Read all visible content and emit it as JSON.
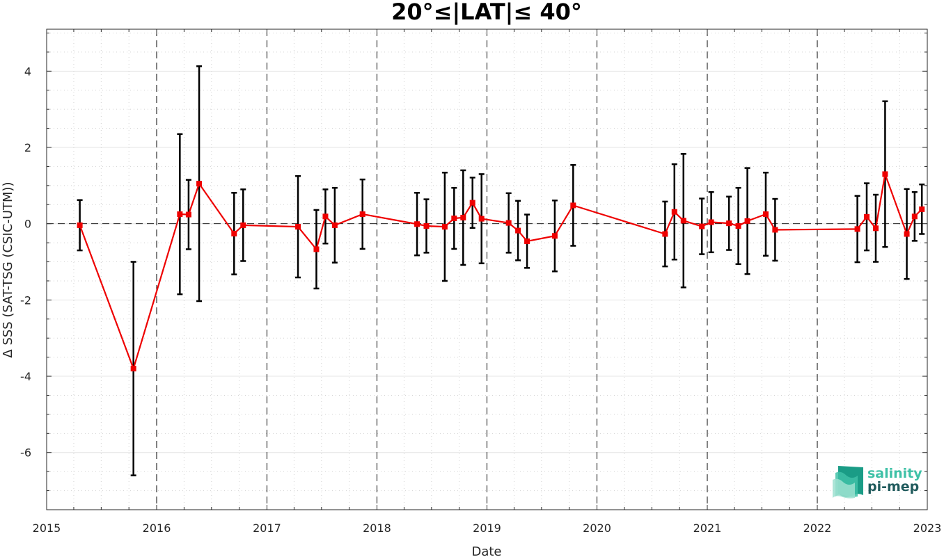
{
  "chart_data": {
    "type": "line",
    "title": "20°≤|LAT|≤ 40°",
    "xlabel": "Date",
    "ylabel": "Δ SSS (SAT-TSG (CSIC-UTM))",
    "xlim": [
      "2015-01-01",
      "2023-01-01"
    ],
    "ylim": [
      -7.5,
      5.1
    ],
    "x_tick_labels": [
      "2015",
      "2016",
      "2017",
      "2018",
      "2019",
      "2020",
      "2021",
      "2022",
      "2023"
    ],
    "y_tick_labels": [
      "-6",
      "-4",
      "-2",
      "0",
      "2",
      "4"
    ],
    "y_ticks": [
      -6,
      -4,
      -2,
      0,
      2,
      4
    ],
    "grid": "on (major and minor dotted)",
    "year_separators": "dashed vertical lines at each year",
    "zero_line": "dashed horizontal at 0",
    "series": [
      {
        "color": "#ee0000",
        "marker": "square",
        "error_bar_color": "#000000",
        "points": [
          {
            "x": "2015-04-21",
            "y": -0.04,
            "err": 0.66
          },
          {
            "x": "2015-10-16",
            "y": -3.8,
            "err": 2.8
          },
          {
            "x": "2016-03-18",
            "y": 0.25,
            "err": 2.1
          },
          {
            "x": "2016-04-16",
            "y": 0.24,
            "err": 0.91
          },
          {
            "x": "2016-05-21",
            "y": 1.05,
            "err": 3.08
          },
          {
            "x": "2016-09-14",
            "y": -0.26,
            "err": 1.07
          },
          {
            "x": "2016-10-14",
            "y": -0.04,
            "err": 0.94
          },
          {
            "x": "2017-04-14",
            "y": -0.08,
            "err": 1.33
          },
          {
            "x": "2017-06-14",
            "y": -0.67,
            "err": 1.03
          },
          {
            "x": "2017-07-14",
            "y": 0.19,
            "err": 0.71
          },
          {
            "x": "2017-08-14",
            "y": -0.04,
            "err": 0.98
          },
          {
            "x": "2017-11-14",
            "y": 0.25,
            "err": 0.91
          },
          {
            "x": "2018-05-14",
            "y": -0.01,
            "err": 0.82
          },
          {
            "x": "2018-06-14",
            "y": -0.06,
            "err": 0.7
          },
          {
            "x": "2018-08-14",
            "y": -0.08,
            "err": 1.42
          },
          {
            "x": "2018-09-14",
            "y": 0.14,
            "err": 0.8
          },
          {
            "x": "2018-10-14",
            "y": 0.16,
            "err": 1.24
          },
          {
            "x": "2018-11-14",
            "y": 0.55,
            "err": 0.66
          },
          {
            "x": "2018-12-14",
            "y": 0.13,
            "err": 1.17
          },
          {
            "x": "2019-03-14",
            "y": 0.02,
            "err": 0.78
          },
          {
            "x": "2019-04-14",
            "y": -0.18,
            "err": 0.78
          },
          {
            "x": "2019-05-14",
            "y": -0.46,
            "err": 0.7
          },
          {
            "x": "2019-08-14",
            "y": -0.32,
            "err": 0.93
          },
          {
            "x": "2019-10-14",
            "y": 0.48,
            "err": 1.06
          },
          {
            "x": "2020-08-14",
            "y": -0.27,
            "err": 0.85
          },
          {
            "x": "2020-09-14",
            "y": 0.31,
            "err": 1.25
          },
          {
            "x": "2020-10-14",
            "y": 0.08,
            "err": 1.75
          },
          {
            "x": "2020-12-14",
            "y": -0.07,
            "err": 0.73
          },
          {
            "x": "2021-01-14",
            "y": 0.04,
            "err": 0.79
          },
          {
            "x": "2021-03-14",
            "y": 0.01,
            "err": 0.7
          },
          {
            "x": "2021-04-14",
            "y": -0.06,
            "err": 1.0
          },
          {
            "x": "2021-05-14",
            "y": 0.07,
            "err": 1.39
          },
          {
            "x": "2021-07-14",
            "y": 0.25,
            "err": 1.09
          },
          {
            "x": "2021-08-14",
            "y": -0.16,
            "err": 0.81
          },
          {
            "x": "2022-05-14",
            "y": -0.14,
            "err": 0.87
          },
          {
            "x": "2022-06-14",
            "y": 0.18,
            "err": 0.88
          },
          {
            "x": "2022-07-14",
            "y": -0.12,
            "err": 0.88
          },
          {
            "x": "2022-08-14",
            "y": 1.3,
            "err": 1.91
          },
          {
            "x": "2022-10-25",
            "y": -0.27,
            "err": 1.18
          },
          {
            "x": "2022-11-20",
            "y": 0.19,
            "err": 0.64
          },
          {
            "x": "2022-12-14",
            "y": 0.38,
            "err": 0.65
          }
        ]
      }
    ]
  },
  "logo": {
    "line1": "salinity",
    "line2": "pi-mep",
    "line1_color": "#3fc1a7",
    "line2_color": "#1f5a5c"
  }
}
